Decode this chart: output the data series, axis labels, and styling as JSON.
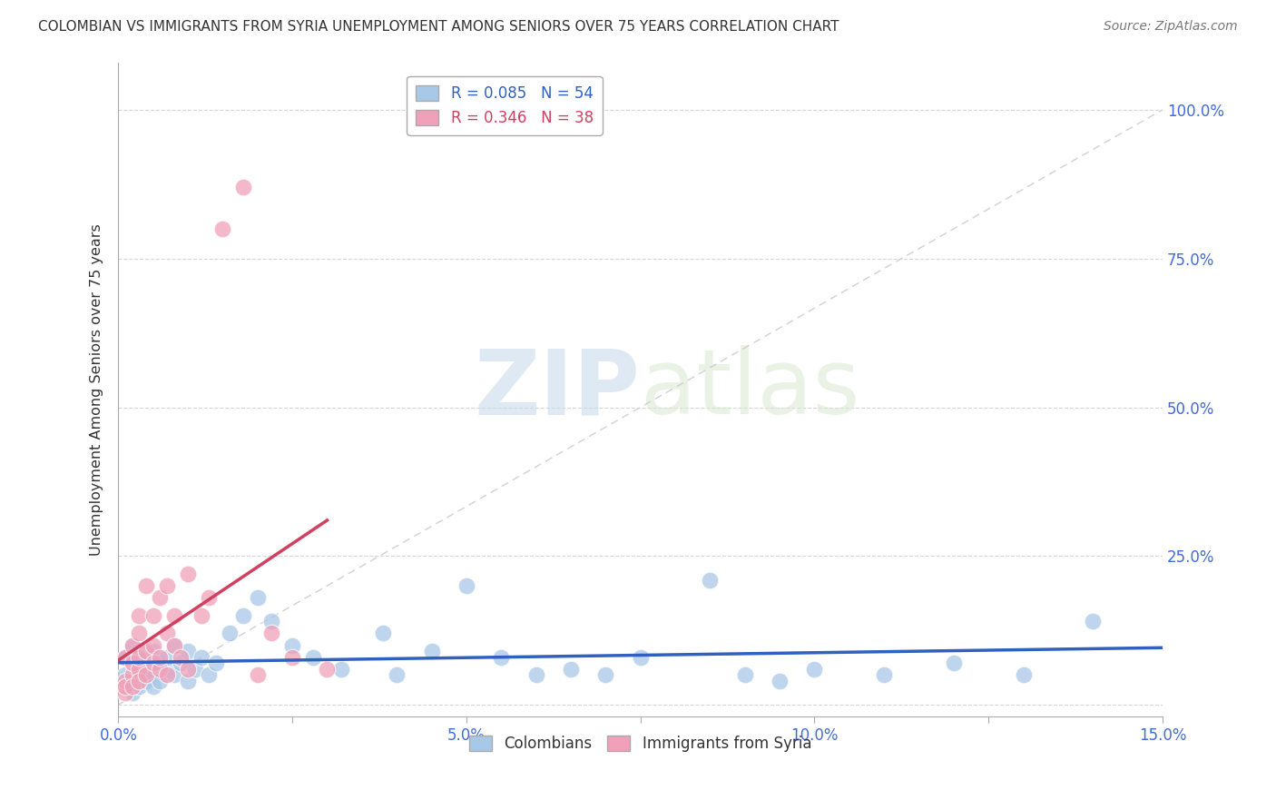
{
  "title": "COLOMBIAN VS IMMIGRANTS FROM SYRIA UNEMPLOYMENT AMONG SENIORS OVER 75 YEARS CORRELATION CHART",
  "source": "Source: ZipAtlas.com",
  "xlabel": "",
  "ylabel": "Unemployment Among Seniors over 75 years",
  "xlim": [
    0.0,
    0.15
  ],
  "ylim": [
    -0.02,
    1.08
  ],
  "xticks": [
    0.0,
    0.025,
    0.05,
    0.075,
    0.1,
    0.125,
    0.15
  ],
  "xticklabels": [
    "0.0%",
    "",
    "5.0%",
    "",
    "10.0%",
    "",
    "15.0%"
  ],
  "yticks": [
    0.0,
    0.25,
    0.5,
    0.75,
    1.0
  ],
  "yticklabels": [
    "",
    "25.0%",
    "50.0%",
    "75.0%",
    "100.0%"
  ],
  "blue_R": 0.085,
  "blue_N": 54,
  "pink_R": 0.346,
  "pink_N": 38,
  "blue_color": "#A8C8E8",
  "pink_color": "#F0A0B8",
  "blue_line_color": "#3060C0",
  "pink_line_color": "#D04060",
  "watermark_zip": "ZIP",
  "watermark_atlas": "atlas",
  "background_color": "#FFFFFF",
  "blue_x": [
    0.001,
    0.001,
    0.001,
    0.002,
    0.002,
    0.002,
    0.002,
    0.003,
    0.003,
    0.003,
    0.003,
    0.004,
    0.004,
    0.004,
    0.005,
    0.005,
    0.005,
    0.006,
    0.006,
    0.007,
    0.007,
    0.008,
    0.008,
    0.009,
    0.01,
    0.01,
    0.011,
    0.012,
    0.013,
    0.014,
    0.016,
    0.018,
    0.02,
    0.022,
    0.025,
    0.028,
    0.032,
    0.038,
    0.04,
    0.045,
    0.05,
    0.055,
    0.06,
    0.065,
    0.07,
    0.075,
    0.085,
    0.09,
    0.095,
    0.1,
    0.11,
    0.12,
    0.13,
    0.14
  ],
  "blue_y": [
    0.05,
    0.08,
    0.03,
    0.07,
    0.04,
    0.1,
    0.02,
    0.06,
    0.09,
    0.03,
    0.05,
    0.04,
    0.08,
    0.06,
    0.05,
    0.09,
    0.03,
    0.07,
    0.04,
    0.06,
    0.08,
    0.05,
    0.1,
    0.07,
    0.04,
    0.09,
    0.06,
    0.08,
    0.05,
    0.07,
    0.12,
    0.15,
    0.18,
    0.14,
    0.1,
    0.08,
    0.06,
    0.12,
    0.05,
    0.09,
    0.2,
    0.08,
    0.05,
    0.06,
    0.05,
    0.08,
    0.21,
    0.05,
    0.04,
    0.06,
    0.05,
    0.07,
    0.05,
    0.14
  ],
  "pink_x": [
    0.001,
    0.001,
    0.001,
    0.001,
    0.002,
    0.002,
    0.002,
    0.002,
    0.003,
    0.003,
    0.003,
    0.003,
    0.003,
    0.004,
    0.004,
    0.004,
    0.005,
    0.005,
    0.005,
    0.006,
    0.006,
    0.006,
    0.007,
    0.007,
    0.007,
    0.008,
    0.008,
    0.009,
    0.01,
    0.01,
    0.012,
    0.013,
    0.015,
    0.018,
    0.02,
    0.022,
    0.025,
    0.03
  ],
  "pink_y": [
    0.02,
    0.04,
    0.08,
    0.03,
    0.05,
    0.1,
    0.07,
    0.03,
    0.06,
    0.15,
    0.08,
    0.12,
    0.04,
    0.09,
    0.05,
    0.2,
    0.07,
    0.15,
    0.1,
    0.06,
    0.18,
    0.08,
    0.12,
    0.2,
    0.05,
    0.1,
    0.15,
    0.08,
    0.06,
    0.22,
    0.15,
    0.18,
    0.8,
    0.87,
    0.05,
    0.12,
    0.08,
    0.06
  ]
}
